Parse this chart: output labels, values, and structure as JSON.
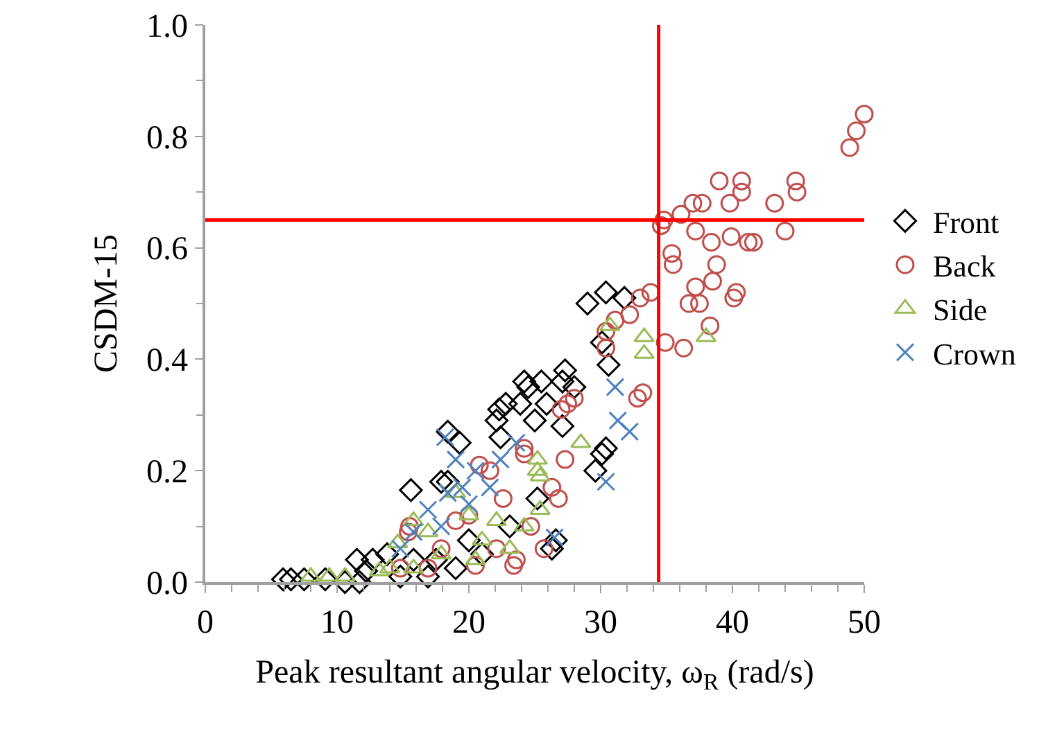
{
  "chart_data": {
    "type": "scatter",
    "xlabel": "Peak resultant angular velocity, ω$_{R}$ (rad/s)",
    "ylabel": "CSDM-15",
    "xlim": [
      0,
      50
    ],
    "ylim": [
      0,
      1
    ],
    "xticks": [
      0,
      10,
      20,
      30,
      40,
      50
    ],
    "yticks": [
      {
        "value": 0,
        "label": "0.0"
      },
      {
        "value": 0.2,
        "label": "0.2"
      },
      {
        "value": 0.4,
        "label": "0.4"
      },
      {
        "value": 0.6,
        "label": "0.6"
      },
      {
        "value": 0.8,
        "label": "0.8"
      },
      {
        "value": 1,
        "label": "1.0"
      }
    ],
    "grid": false,
    "legend": "right",
    "ref_lines": [
      {
        "axis": "x",
        "value": 34.4,
        "color": "#ff0000"
      },
      {
        "axis": "y",
        "value": 0.65,
        "color": "#ff0000"
      }
    ],
    "series": [
      {
        "name": "Front",
        "color": "#000000",
        "marker": "diamond",
        "x": [
          5.9,
          6.5,
          7.5,
          9.1,
          10.6,
          11.7,
          12.2,
          12.7,
          13.8,
          15.6,
          17.5,
          18.4,
          18.4,
          19.3,
          17.9,
          11.5,
          22.3,
          22.8,
          22.1,
          22.4,
          24.2,
          29,
          30.4,
          31.8,
          30.1,
          30.6,
          24.5,
          25.5,
          27.3,
          27.1,
          28,
          23.9,
          25,
          25.9,
          27.1,
          30.1,
          29.6,
          30.4,
          26.6,
          26.3,
          25.2,
          20,
          21,
          19,
          16.9,
          14.8,
          23.1,
          15.8
        ],
        "values": [
          0.005,
          0.005,
          0.005,
          0.005,
          0,
          0,
          0.02,
          0.04,
          0.05,
          0.165,
          0.04,
          0.18,
          0.27,
          0.25,
          0.18,
          0.04,
          0.31,
          0.32,
          0.29,
          0.26,
          0.36,
          0.5,
          0.52,
          0.51,
          0.43,
          0.39,
          0.35,
          0.36,
          0.38,
          0.36,
          0.35,
          0.32,
          0.29,
          0.32,
          0.28,
          0.23,
          0.2,
          0.24,
          0.075,
          0.06,
          0.15,
          0.075,
          0.05,
          0.025,
          0.01,
          0.01,
          0.1,
          0.04
        ]
      },
      {
        "name": "Back",
        "color": "#c0504d",
        "marker": "circle",
        "x": [
          50,
          49.4,
          48.9,
          39,
          40.7,
          44.8,
          44.9,
          43.2,
          40.7,
          39.8,
          37,
          37.7,
          36.1,
          34.8,
          34.6,
          37.2,
          38.4,
          39.9,
          41.2,
          41.6,
          44,
          35.4,
          35.5,
          38.8,
          38.5,
          37.2,
          36.7,
          37.5,
          40.3,
          40.1,
          38.3,
          33.8,
          33,
          34.9,
          36.3,
          32.8,
          32.2,
          31.1,
          30.4,
          30.4,
          33.2,
          27.5,
          27,
          28,
          26.8,
          24.2,
          15.5,
          20.8,
          23.4,
          14.8,
          15.4,
          17.9,
          20,
          21.6,
          22.6,
          23.6,
          24.7,
          25.7,
          26.3,
          27.3,
          20.5,
          16.9,
          24.2,
          22.1,
          19
        ],
        "values": [
          0.84,
          0.81,
          0.78,
          0.72,
          0.72,
          0.72,
          0.7,
          0.68,
          0.7,
          0.68,
          0.68,
          0.68,
          0.66,
          0.65,
          0.64,
          0.63,
          0.61,
          0.62,
          0.61,
          0.61,
          0.63,
          0.59,
          0.57,
          0.57,
          0.54,
          0.53,
          0.5,
          0.5,
          0.52,
          0.51,
          0.46,
          0.52,
          0.51,
          0.43,
          0.42,
          0.33,
          0.48,
          0.47,
          0.42,
          0.45,
          0.34,
          0.32,
          0.31,
          0.33,
          0.15,
          0.23,
          0.1,
          0.21,
          0.03,
          0.025,
          0.09,
          0.06,
          0.12,
          0.2,
          0.15,
          0.04,
          0.1,
          0.06,
          0.17,
          0.22,
          0.03,
          0.025,
          0.24,
          0.06,
          0.11
        ]
      },
      {
        "name": "Side",
        "color": "#9bbb59",
        "marker": "triangle",
        "x": [
          8,
          9.4,
          10.6,
          13.2,
          14,
          14.6,
          15.8,
          16.9,
          17.9,
          19,
          20,
          21,
          22.1,
          23.1,
          24.2,
          25.2,
          25.4,
          28.5,
          30.7,
          33.3,
          33.3,
          25.2,
          25.4,
          38,
          15.8,
          20.5
        ],
        "values": [
          0.01,
          0.01,
          0.01,
          0.02,
          0.025,
          0.07,
          0.11,
          0.09,
          0.05,
          0.16,
          0.12,
          0.075,
          0.11,
          0.06,
          0.1,
          0.2,
          0.13,
          0.25,
          0.46,
          0.44,
          0.41,
          0.22,
          0.19,
          0.44,
          0.025,
          0.04
        ]
      },
      {
        "name": "Crown",
        "color": "#4f81bd",
        "marker": "cross",
        "x": [
          18.2,
          19,
          17.9,
          16.9,
          19.5,
          20.5,
          15.8,
          14.8,
          20,
          18.4,
          31.1,
          31.3,
          32.2,
          30.4,
          26.5,
          23.6,
          22.4,
          21.6
        ],
        "values": [
          0.26,
          0.22,
          0.1,
          0.13,
          0.17,
          0.2,
          0.09,
          0.06,
          0.14,
          0.16,
          0.35,
          0.29,
          0.27,
          0.18,
          0.08,
          0.25,
          0.22,
          0.17
        ]
      }
    ]
  }
}
